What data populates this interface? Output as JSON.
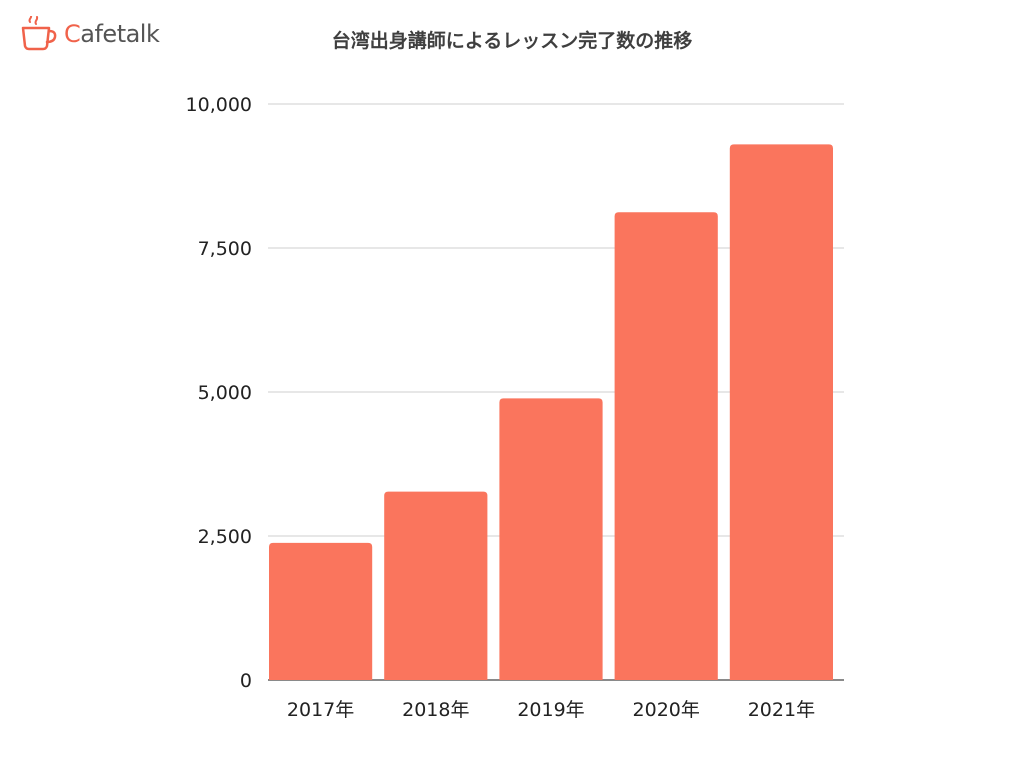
{
  "logo": {
    "first_letter": "C",
    "rest": "afetalk",
    "icon": "coffee-cup-icon"
  },
  "colors": {
    "bar": "#fa755d",
    "grid": "#cfcfcf",
    "axis": "#444444",
    "logo_accent": "#f0624a"
  },
  "chart_data": {
    "type": "bar",
    "title": "台湾出身講師によるレッスン完了数の推移",
    "xlabel": "",
    "ylabel": "",
    "categories": [
      "2017年",
      "2018年",
      "2019年",
      "2020年",
      "2021年"
    ],
    "values": [
      2380,
      3270,
      4890,
      8120,
      9300
    ],
    "ylim": [
      0,
      10000
    ],
    "yticks": [
      0,
      2500,
      5000,
      7500,
      10000
    ],
    "ytick_labels": [
      "0",
      "2,500",
      "5,000",
      "7,500",
      "10,000"
    ],
    "grid": true,
    "legend": "none"
  }
}
